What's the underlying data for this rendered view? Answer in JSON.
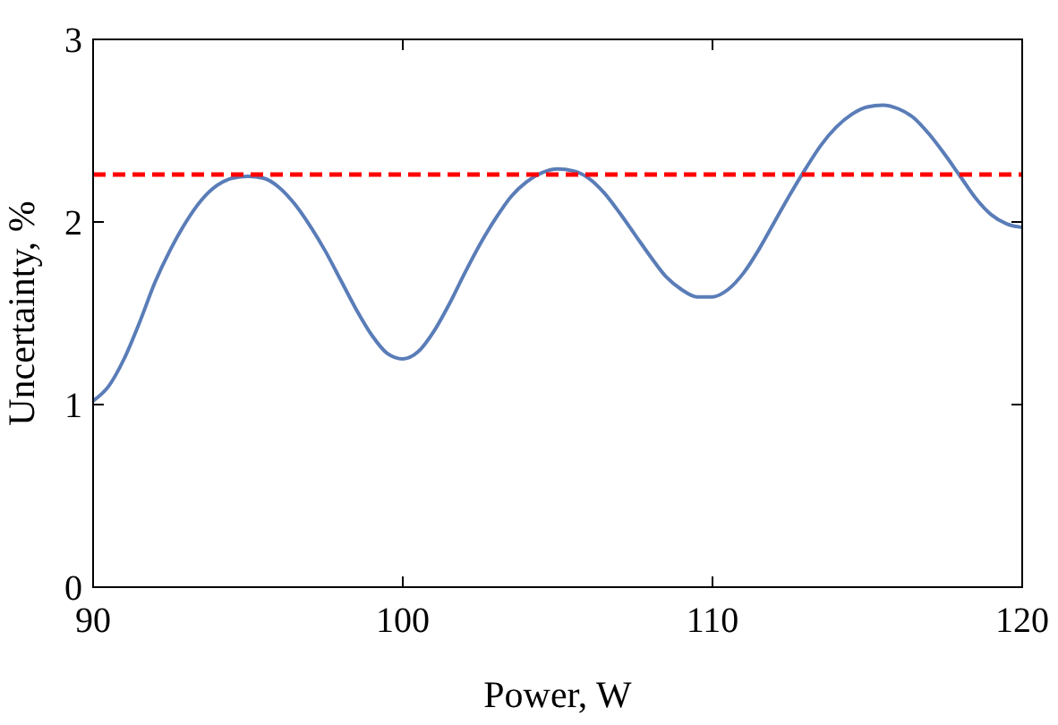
{
  "chart_data": {
    "type": "line",
    "xlabel": "Power, W",
    "ylabel": "Uncertainty, %",
    "xlim": [
      90,
      120
    ],
    "xticks": [
      90,
      100,
      110,
      120
    ],
    "ylim": [
      0,
      3
    ],
    "yticks": [
      0,
      1,
      2,
      3
    ],
    "grid": false,
    "marker": "none",
    "line_style": "solid",
    "series": [
      {
        "color": "#5a7db8",
        "x": [
          90,
          90.5,
          91,
          91.5,
          92,
          92.5,
          93,
          93.5,
          94,
          94.5,
          95,
          95.5,
          96,
          96.5,
          97,
          97.5,
          98,
          98.5,
          99,
          99.5,
          100,
          100.5,
          101,
          101.5,
          102,
          102.5,
          103,
          103.5,
          104,
          104.5,
          105,
          105.5,
          106,
          106.5,
          107,
          107.5,
          108,
          108.5,
          109,
          109.5,
          110,
          110.5,
          111,
          111.5,
          112,
          112.5,
          113,
          113.5,
          114,
          114.5,
          115,
          115.5,
          116,
          116.5,
          117,
          117.5,
          118,
          118.5,
          119,
          119.5,
          120
        ],
        "values": [
          1.02,
          1.1,
          1.25,
          1.45,
          1.67,
          1.85,
          2.0,
          2.12,
          2.2,
          2.24,
          2.25,
          2.24,
          2.19,
          2.1,
          1.98,
          1.84,
          1.68,
          1.52,
          1.38,
          1.28,
          1.25,
          1.29,
          1.4,
          1.55,
          1.72,
          1.88,
          2.02,
          2.14,
          2.22,
          2.27,
          2.29,
          2.28,
          2.24,
          2.16,
          2.05,
          1.93,
          1.81,
          1.7,
          1.63,
          1.59,
          1.59,
          1.63,
          1.72,
          1.85,
          2.0,
          2.15,
          2.29,
          2.42,
          2.52,
          2.59,
          2.63,
          2.64,
          2.62,
          2.57,
          2.48,
          2.37,
          2.25,
          2.13,
          2.04,
          1.99,
          1.97
        ]
      }
    ],
    "ref_lines": [
      {
        "axis": "y",
        "value": 2.26,
        "color": "#ff0000",
        "line_style": "dashed"
      }
    ]
  }
}
